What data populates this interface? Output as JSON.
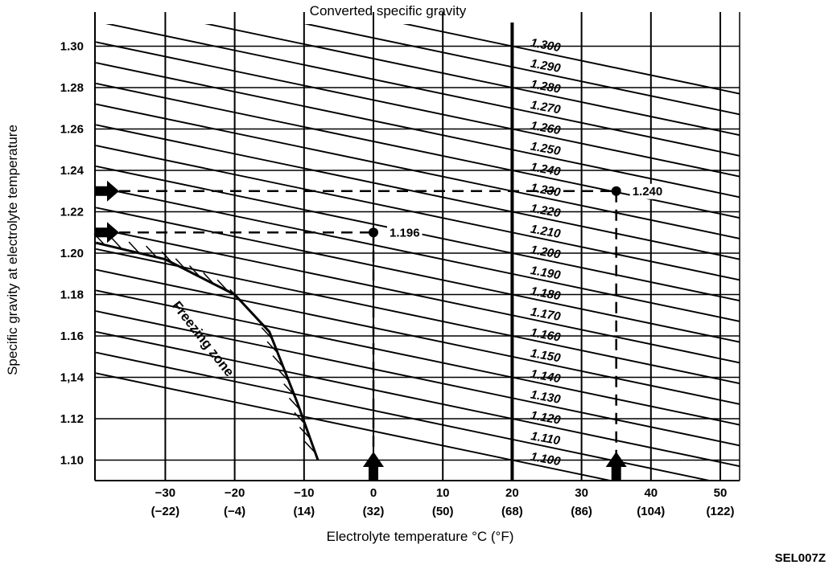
{
  "chart_data": {
    "type": "line",
    "title": "Converted specific gravity",
    "xlabel": "Electrolyte temperature °C (°F)",
    "ylabel": "Specific gravity at electrolyte temperature",
    "figure_code": "SEL007Z",
    "xlim": [
      -40,
      53
    ],
    "ylim": [
      1.09,
      1.31
    ],
    "x_ticks": [
      {
        "c": -30,
        "label": "−30",
        "f_label": "(−22)"
      },
      {
        "c": -20,
        "label": "−20",
        "f_label": "(−4)"
      },
      {
        "c": -10,
        "label": "−10",
        "f_label": "(14)"
      },
      {
        "c": 0,
        "label": "0",
        "f_label": "(32)"
      },
      {
        "c": 10,
        "label": "10",
        "f_label": "(50)"
      },
      {
        "c": 20,
        "label": "20",
        "f_label": "(68)"
      },
      {
        "c": 30,
        "label": "30",
        "f_label": "(86)"
      },
      {
        "c": 40,
        "label": "40",
        "f_label": "(104)"
      },
      {
        "c": 50,
        "label": "50",
        "f_label": "(122)"
      }
    ],
    "y_ticks": [
      {
        "value": 1.1,
        "label": "1.10"
      },
      {
        "value": 1.12,
        "label": "1.12"
      },
      {
        "value": 1.14,
        "label": "1,14"
      },
      {
        "value": 1.16,
        "label": "1.16"
      },
      {
        "value": 1.18,
        "label": "1.18"
      },
      {
        "value": 1.2,
        "label": "1.20"
      },
      {
        "value": 1.22,
        "label": "1.22"
      },
      {
        "value": 1.24,
        "label": "1.24"
      },
      {
        "value": 1.26,
        "label": "1.26"
      },
      {
        "value": 1.28,
        "label": "1.28"
      },
      {
        "value": 1.3,
        "label": "1.30"
      }
    ],
    "reference_temperature_c": 20,
    "temperature_slope_per_c": -0.0007,
    "series": [
      {
        "name": "1.300",
        "value": 1.3
      },
      {
        "name": "1.290",
        "value": 1.29
      },
      {
        "name": "1.280",
        "value": 1.28
      },
      {
        "name": "1.270",
        "value": 1.27
      },
      {
        "name": "1.260",
        "value": 1.26
      },
      {
        "name": "1.250",
        "value": 1.25
      },
      {
        "name": "1.240",
        "value": 1.24
      },
      {
        "name": "1.230",
        "value": 1.23
      },
      {
        "name": "1.220",
        "value": 1.22
      },
      {
        "name": "1.210",
        "value": 1.21
      },
      {
        "name": "1.200",
        "value": 1.2
      },
      {
        "name": "1.190",
        "value": 1.19
      },
      {
        "name": "1.180",
        "value": 1.18
      },
      {
        "name": "1.170",
        "value": 1.17
      },
      {
        "name": "1.160",
        "value": 1.16
      },
      {
        "name": "1.150",
        "value": 1.15
      },
      {
        "name": "1.140",
        "value": 1.14
      },
      {
        "name": "1.130",
        "value": 1.13
      },
      {
        "name": "1.120",
        "value": 1.12
      },
      {
        "name": "1.110",
        "value": 1.11
      },
      {
        "name": "1.100",
        "value": 1.1
      }
    ],
    "freezing_zone": {
      "label": "Freezing zone",
      "boundary": [
        [
          -40,
          1.205
        ],
        [
          -30,
          1.197
        ],
        [
          -20,
          1.18
        ],
        [
          -15,
          1.162
        ],
        [
          -11,
          1.128
        ],
        [
          -8,
          1.1
        ]
      ]
    },
    "examples": [
      {
        "temp_c": 0,
        "measured": 1.21,
        "converted": 1.196,
        "label": "1.196"
      },
      {
        "temp_c": 35,
        "measured": 1.23,
        "converted": 1.24,
        "label": "1.240"
      }
    ]
  }
}
